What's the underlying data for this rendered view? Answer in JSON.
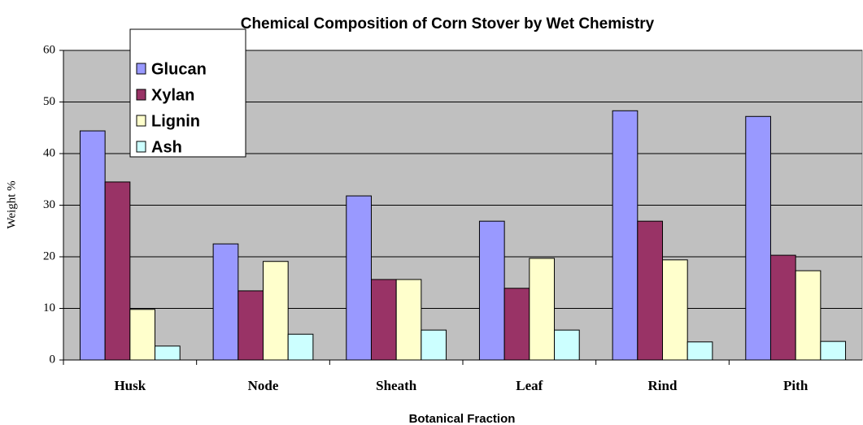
{
  "chart_data": {
    "type": "bar",
    "title": "Chemical Composition of Corn Stover by Wet Chemistry",
    "x_label": "Botanical Fraction",
    "y_label": "Weight %",
    "categories": [
      "Husk",
      "Node",
      "Sheath",
      "Leaf",
      "Rind",
      "Pith"
    ],
    "series": [
      {
        "name": "Glucan",
        "color": "#9999ff",
        "values": [
          44.4,
          22.5,
          31.8,
          26.9,
          48.3,
          47.2
        ]
      },
      {
        "name": "Xylan",
        "color": "#993366",
        "values": [
          34.5,
          13.4,
          15.6,
          13.9,
          26.9,
          20.3
        ]
      },
      {
        "name": "Lignin",
        "color": "#ffffcc",
        "values": [
          9.8,
          19.1,
          15.6,
          19.7,
          19.4,
          17.3
        ]
      },
      {
        "name": "Ash",
        "color": "#ccffff",
        "values": [
          2.7,
          5.0,
          5.8,
          5.8,
          3.5,
          3.6
        ]
      }
    ],
    "ylim": [
      0,
      60
    ],
    "yticks": [
      0,
      10,
      20,
      30,
      40,
      50,
      60
    ],
    "grid": true,
    "legend": "upper left"
  }
}
